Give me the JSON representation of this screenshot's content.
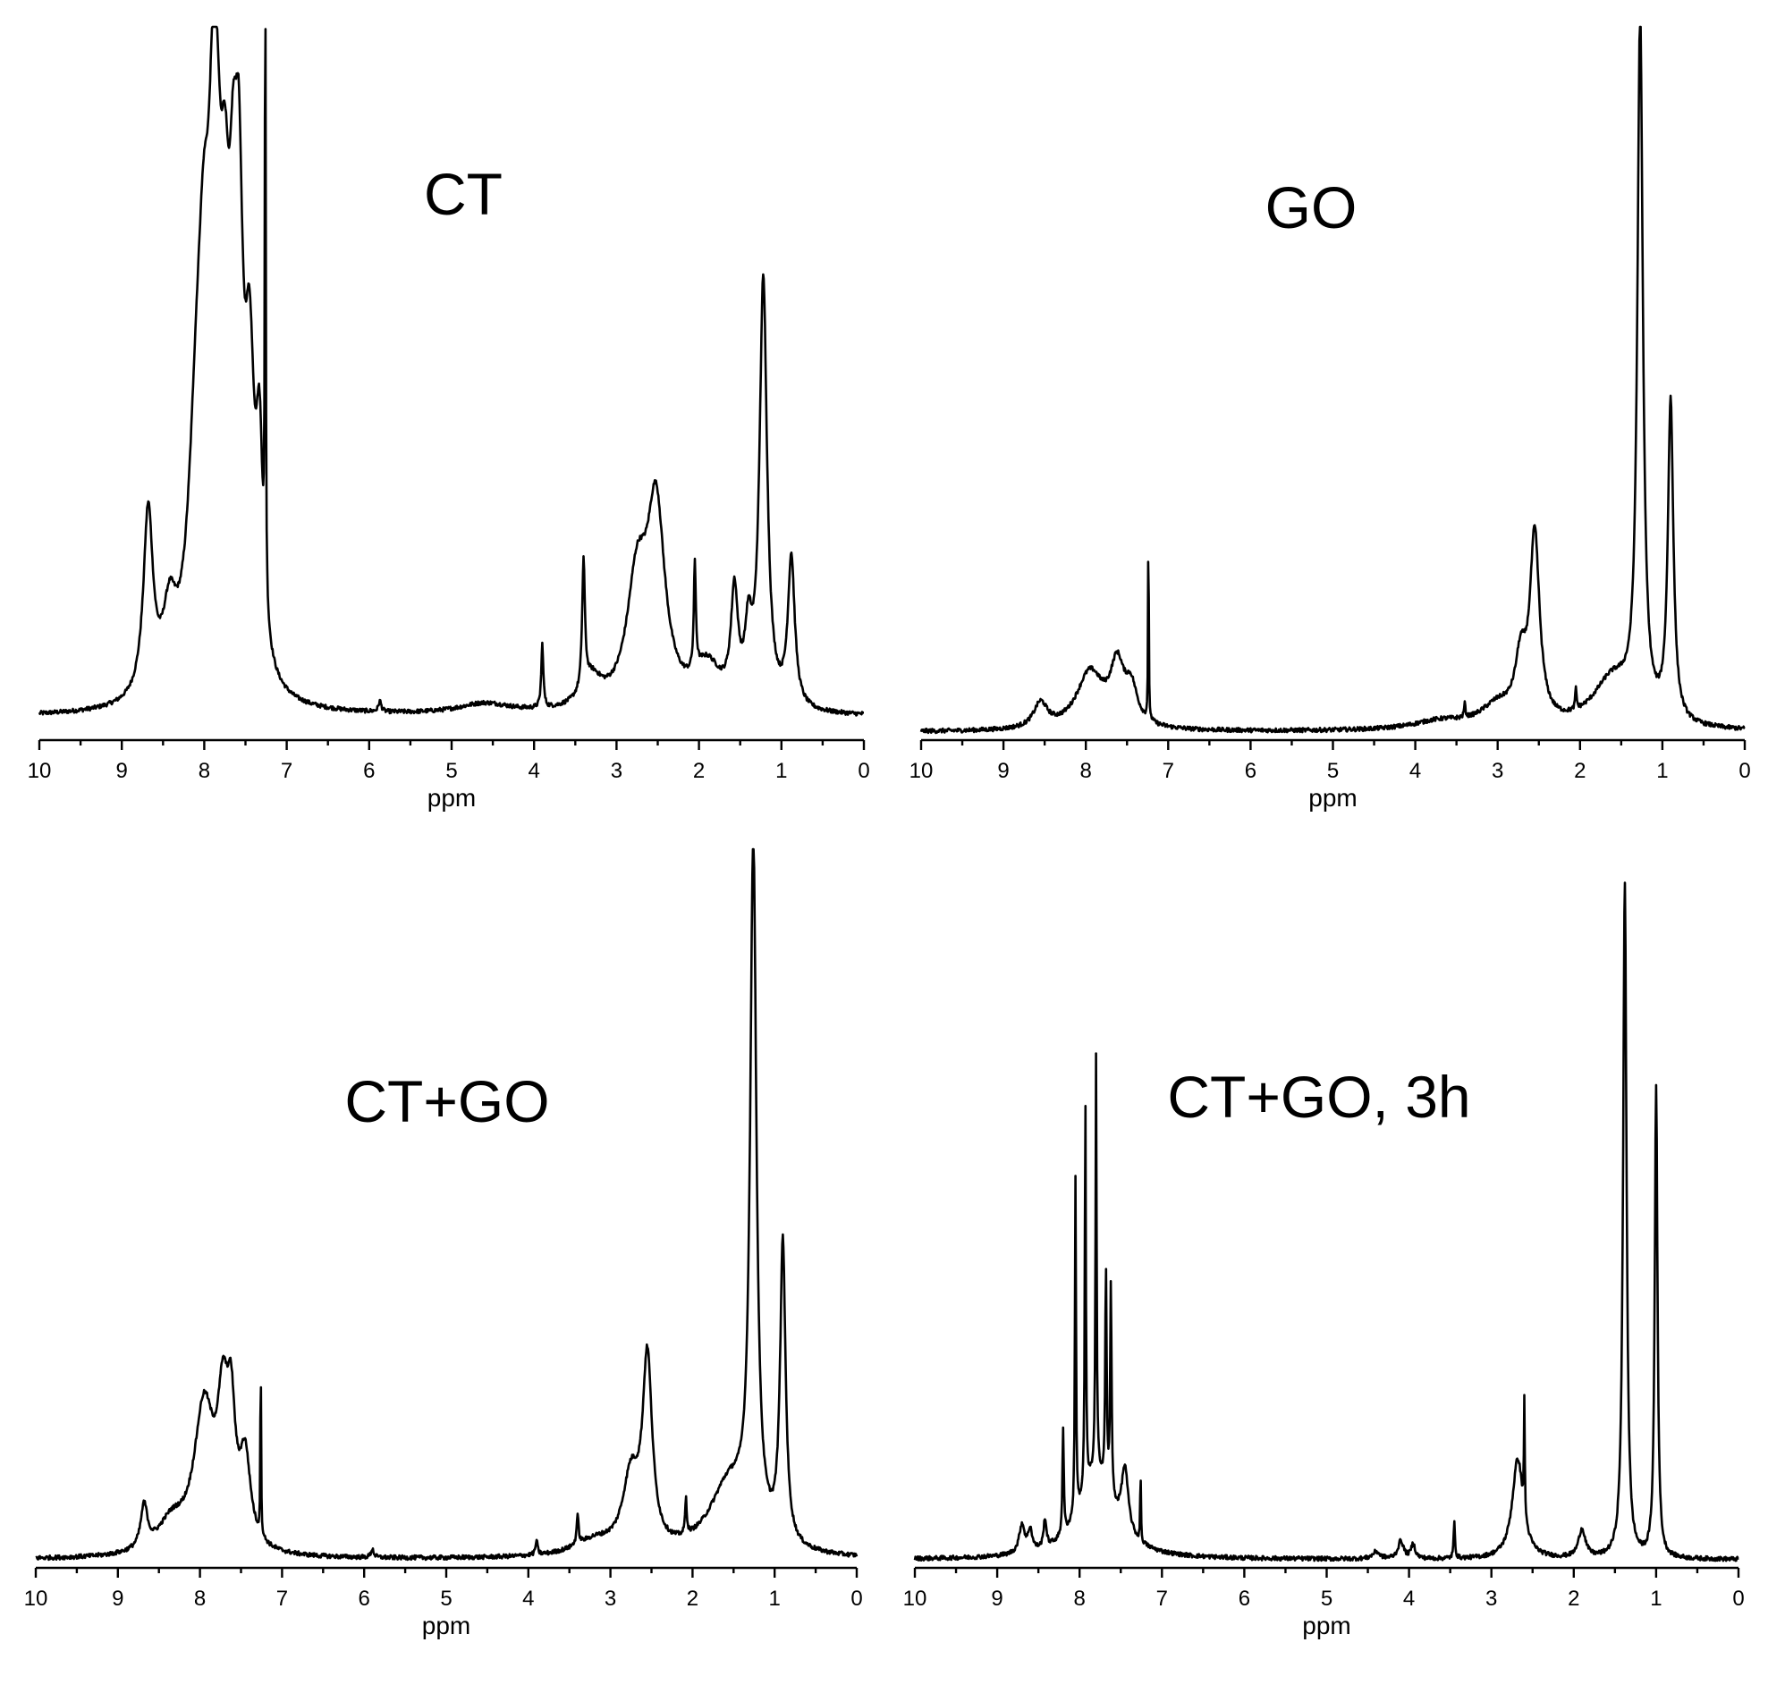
{
  "chart_data": [
    {
      "type": "line",
      "label": "CT",
      "xlabel": "ppm",
      "xlim": [
        10,
        0
      ],
      "x_reversed": true,
      "x_ticks": [
        "10",
        "9",
        "8",
        "7",
        "6",
        "5",
        "4",
        "3",
        "2",
        "1",
        "0"
      ],
      "grid": false,
      "baseline": 0.025,
      "peaks": [
        {
          "ppm": 8.68,
          "height": 0.26,
          "width": 0.07
        },
        {
          "ppm": 8.42,
          "height": 0.1,
          "width": 0.1
        },
        {
          "ppm": 8.1,
          "height": 0.25,
          "width": 0.12
        },
        {
          "ppm": 8.0,
          "height": 0.43,
          "width": 0.1
        },
        {
          "ppm": 7.9,
          "height": 0.3,
          "width": 0.06
        },
        {
          "ppm": 7.85,
          "height": 0.42,
          "width": 0.07
        },
        {
          "ppm": 7.75,
          "height": 0.42,
          "width": 0.07
        },
        {
          "ppm": 7.65,
          "height": 0.38,
          "width": 0.06
        },
        {
          "ppm": 7.58,
          "height": 0.5,
          "width": 0.06
        },
        {
          "ppm": 7.45,
          "height": 0.38,
          "width": 0.07
        },
        {
          "ppm": 7.33,
          "height": 0.28,
          "width": 0.05
        },
        {
          "ppm": 7.26,
          "height": 0.96,
          "width": 0.006
        },
        {
          "ppm": 5.87,
          "height": 0.015,
          "width": 0.02
        },
        {
          "ppm": 4.6,
          "height": 0.015,
          "width": 0.4
        },
        {
          "ppm": 3.9,
          "height": 0.09,
          "width": 0.015
        },
        {
          "ppm": 3.4,
          "height": 0.18,
          "width": 0.02
        },
        {
          "ppm": 3.3,
          "height": 0.04,
          "width": 0.15
        },
        {
          "ppm": 2.75,
          "height": 0.17,
          "width": 0.15
        },
        {
          "ppm": 2.52,
          "height": 0.27,
          "width": 0.13
        },
        {
          "ppm": 2.05,
          "height": 0.15,
          "width": 0.015
        },
        {
          "ppm": 1.9,
          "height": 0.06,
          "width": 0.2
        },
        {
          "ppm": 1.57,
          "height": 0.15,
          "width": 0.05
        },
        {
          "ppm": 1.4,
          "height": 0.09,
          "width": 0.05
        },
        {
          "ppm": 1.22,
          "height": 0.6,
          "width": 0.055
        },
        {
          "ppm": 0.88,
          "height": 0.21,
          "width": 0.05
        }
      ]
    },
    {
      "type": "line",
      "label": "GO",
      "xlabel": "ppm",
      "xlim": [
        10,
        0
      ],
      "x_reversed": true,
      "x_ticks": [
        "10",
        "9",
        "8",
        "7",
        "6",
        "5",
        "4",
        "3",
        "2",
        "1",
        "0"
      ],
      "grid": false,
      "baseline": 0.004,
      "peaks": [
        {
          "ppm": 8.55,
          "height": 0.035,
          "width": 0.1
        },
        {
          "ppm": 7.95,
          "height": 0.08,
          "width": 0.2
        },
        {
          "ppm": 7.62,
          "height": 0.08,
          "width": 0.1
        },
        {
          "ppm": 7.45,
          "height": 0.05,
          "width": 0.09
        },
        {
          "ppm": 7.24,
          "height": 0.29,
          "width": 0.005
        },
        {
          "ppm": 3.7,
          "height": 0.012,
          "width": 0.4
        },
        {
          "ppm": 3.4,
          "height": 0.02,
          "width": 0.01
        },
        {
          "ppm": 3.0,
          "height": 0.03,
          "width": 0.25
        },
        {
          "ppm": 2.72,
          "height": 0.08,
          "width": 0.08
        },
        {
          "ppm": 2.55,
          "height": 0.26,
          "width": 0.07
        },
        {
          "ppm": 2.05,
          "height": 0.03,
          "width": 0.01
        },
        {
          "ppm": 1.6,
          "height": 0.07,
          "width": 0.3
        },
        {
          "ppm": 1.27,
          "height": 0.98,
          "width": 0.04
        },
        {
          "ppm": 0.9,
          "height": 0.45,
          "width": 0.04
        }
      ]
    },
    {
      "type": "line",
      "label": "CT+GO",
      "xlabel": "ppm",
      "xlim": [
        10,
        0
      ],
      "x_reversed": true,
      "x_ticks": [
        "10",
        "9",
        "8",
        "7",
        "6",
        "5",
        "4",
        "3",
        "2",
        "1",
        "0"
      ],
      "grid": false,
      "baseline": 0.004,
      "peaks": [
        {
          "ppm": 8.68,
          "height": 0.06,
          "width": 0.05
        },
        {
          "ppm": 8.35,
          "height": 0.04,
          "width": 0.2
        },
        {
          "ppm": 7.95,
          "height": 0.2,
          "width": 0.15
        },
        {
          "ppm": 7.72,
          "height": 0.17,
          "width": 0.08
        },
        {
          "ppm": 7.62,
          "height": 0.15,
          "width": 0.06
        },
        {
          "ppm": 7.45,
          "height": 0.12,
          "width": 0.08
        },
        {
          "ppm": 7.26,
          "height": 0.27,
          "width": 0.005
        },
        {
          "ppm": 5.9,
          "height": 0.012,
          "width": 0.02
        },
        {
          "ppm": 3.9,
          "height": 0.02,
          "width": 0.015
        },
        {
          "ppm": 3.4,
          "height": 0.04,
          "width": 0.015
        },
        {
          "ppm": 3.2,
          "height": 0.02,
          "width": 0.3
        },
        {
          "ppm": 2.75,
          "height": 0.1,
          "width": 0.12
        },
        {
          "ppm": 2.55,
          "height": 0.26,
          "width": 0.07
        },
        {
          "ppm": 2.08,
          "height": 0.05,
          "width": 0.012
        },
        {
          "ppm": 1.55,
          "height": 0.1,
          "width": 0.3
        },
        {
          "ppm": 1.26,
          "height": 0.96,
          "width": 0.045
        },
        {
          "ppm": 0.9,
          "height": 0.42,
          "width": 0.04
        }
      ]
    },
    {
      "type": "line",
      "label": "CT+GO, 3h",
      "xlabel": "ppm",
      "xlim": [
        10,
        0
      ],
      "x_reversed": true,
      "x_ticks": [
        "10",
        "9",
        "8",
        "7",
        "6",
        "5",
        "4",
        "3",
        "2",
        "1",
        "0"
      ],
      "grid": false,
      "baseline": 0.004,
      "peaks": [
        {
          "ppm": 8.7,
          "height": 0.04,
          "width": 0.04
        },
        {
          "ppm": 8.6,
          "height": 0.03,
          "width": 0.03
        },
        {
          "ppm": 8.42,
          "height": 0.04,
          "width": 0.02
        },
        {
          "ppm": 8.2,
          "height": 0.15,
          "width": 0.01
        },
        {
          "ppm": 8.05,
          "height": 0.47,
          "width": 0.008
        },
        {
          "ppm": 7.93,
          "height": 0.55,
          "width": 0.008
        },
        {
          "ppm": 7.8,
          "height": 0.58,
          "width": 0.008
        },
        {
          "ppm": 7.68,
          "height": 0.3,
          "width": 0.01
        },
        {
          "ppm": 7.62,
          "height": 0.3,
          "width": 0.01
        },
        {
          "ppm": 7.8,
          "height": 0.12,
          "width": 0.25
        },
        {
          "ppm": 7.45,
          "height": 0.09,
          "width": 0.05
        },
        {
          "ppm": 7.26,
          "height": 0.11,
          "width": 0.005
        },
        {
          "ppm": 4.4,
          "height": 0.01,
          "width": 0.05
        },
        {
          "ppm": 4.1,
          "height": 0.025,
          "width": 0.04
        },
        {
          "ppm": 3.95,
          "height": 0.02,
          "width": 0.03
        },
        {
          "ppm": 3.45,
          "height": 0.05,
          "width": 0.01
        },
        {
          "ppm": 2.68,
          "height": 0.14,
          "width": 0.08
        },
        {
          "ppm": 2.6,
          "height": 0.16,
          "width": 0.006
        },
        {
          "ppm": 1.9,
          "height": 0.04,
          "width": 0.05
        },
        {
          "ppm": 1.38,
          "height": 0.95,
          "width": 0.025
        },
        {
          "ppm": 1.0,
          "height": 0.66,
          "width": 0.02
        }
      ]
    }
  ]
}
